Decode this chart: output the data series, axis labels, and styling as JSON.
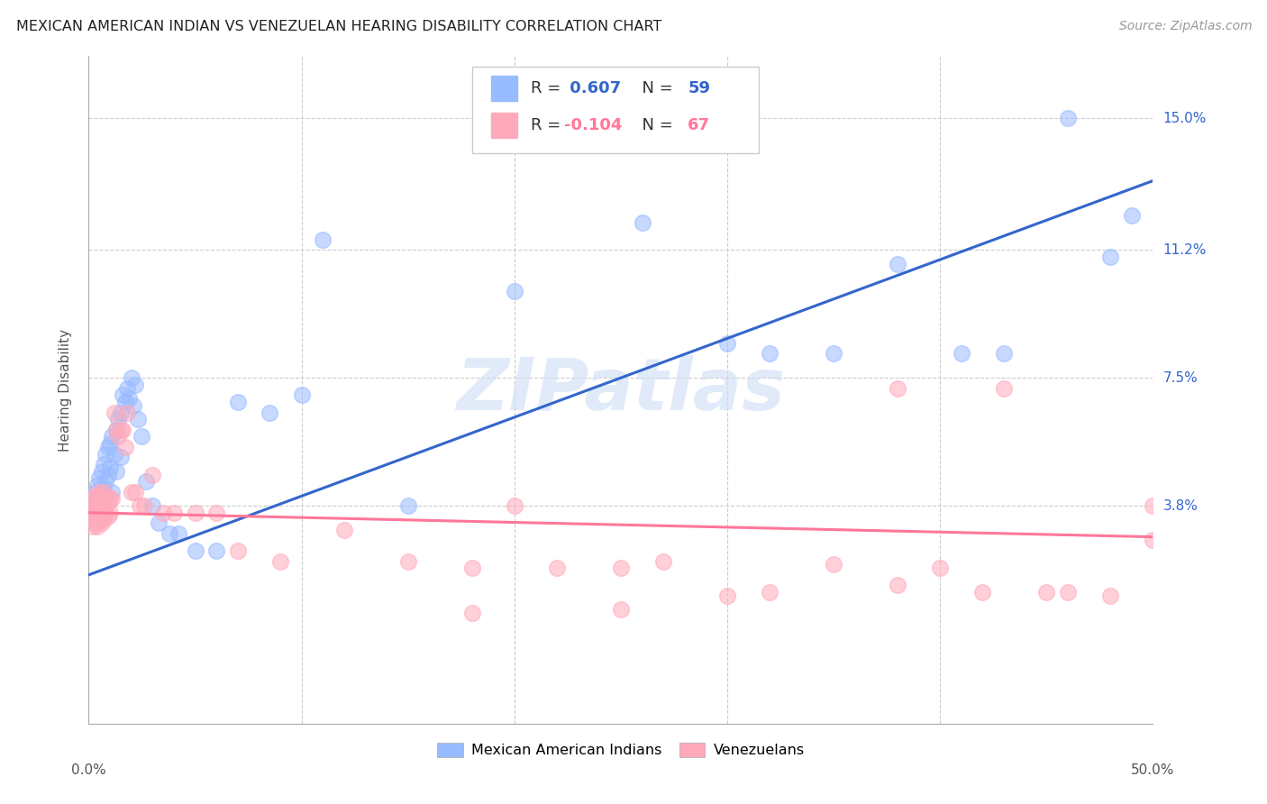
{
  "title": "MEXICAN AMERICAN INDIAN VS VENEZUELAN HEARING DISABILITY CORRELATION CHART",
  "source": "Source: ZipAtlas.com",
  "ylabel": "Hearing Disability",
  "yticks_labels": [
    "15.0%",
    "11.2%",
    "7.5%",
    "3.8%"
  ],
  "ytick_vals": [
    0.15,
    0.112,
    0.075,
    0.038
  ],
  "xmin": 0.0,
  "xmax": 0.5,
  "ymin": -0.025,
  "ymax": 0.168,
  "blue_color": "#99BBFF",
  "pink_color": "#FFAABB",
  "blue_line_color": "#3366CC",
  "pink_line_color": "#FF7799",
  "watermark": "ZIPatlas",
  "legend_label_blue": "Mexican American Indians",
  "legend_label_pink": "Venezuelans",
  "blue_r_text": "R = ",
  "blue_r_val": " 0.607",
  "blue_n_text": "  N = ",
  "blue_n_val": "59",
  "pink_r_text": "R = ",
  "pink_r_val": "-0.104",
  "pink_n_text": "  N = ",
  "pink_n_val": "67",
  "blue_scatter_x": [
    0.001,
    0.002,
    0.002,
    0.003,
    0.003,
    0.004,
    0.004,
    0.005,
    0.005,
    0.006,
    0.006,
    0.007,
    0.007,
    0.008,
    0.008,
    0.009,
    0.009,
    0.01,
    0.01,
    0.011,
    0.011,
    0.012,
    0.013,
    0.013,
    0.014,
    0.015,
    0.015,
    0.016,
    0.017,
    0.018,
    0.019,
    0.02,
    0.021,
    0.022,
    0.023,
    0.025,
    0.027,
    0.03,
    0.033,
    0.038,
    0.042,
    0.05,
    0.06,
    0.07,
    0.085,
    0.1,
    0.11,
    0.15,
    0.2,
    0.26,
    0.3,
    0.32,
    0.35,
    0.38,
    0.41,
    0.43,
    0.46,
    0.48,
    0.49
  ],
  "blue_scatter_y": [
    0.038,
    0.04,
    0.036,
    0.042,
    0.035,
    0.044,
    0.037,
    0.046,
    0.039,
    0.048,
    0.041,
    0.05,
    0.043,
    0.053,
    0.045,
    0.055,
    0.047,
    0.056,
    0.049,
    0.058,
    0.042,
    0.053,
    0.06,
    0.048,
    0.063,
    0.065,
    0.052,
    0.07,
    0.068,
    0.072,
    0.069,
    0.075,
    0.067,
    0.073,
    0.063,
    0.058,
    0.045,
    0.038,
    0.033,
    0.03,
    0.03,
    0.025,
    0.025,
    0.068,
    0.065,
    0.07,
    0.115,
    0.038,
    0.1,
    0.12,
    0.085,
    0.082,
    0.082,
    0.108,
    0.082,
    0.082,
    0.15,
    0.11,
    0.122
  ],
  "pink_scatter_x": [
    0.001,
    0.001,
    0.002,
    0.002,
    0.002,
    0.003,
    0.003,
    0.003,
    0.004,
    0.004,
    0.004,
    0.005,
    0.005,
    0.005,
    0.006,
    0.006,
    0.006,
    0.007,
    0.007,
    0.007,
    0.008,
    0.008,
    0.009,
    0.009,
    0.01,
    0.01,
    0.011,
    0.012,
    0.013,
    0.014,
    0.015,
    0.016,
    0.017,
    0.018,
    0.02,
    0.022,
    0.024,
    0.026,
    0.03,
    0.035,
    0.04,
    0.05,
    0.06,
    0.07,
    0.09,
    0.12,
    0.15,
    0.18,
    0.2,
    0.22,
    0.25,
    0.27,
    0.3,
    0.32,
    0.35,
    0.38,
    0.4,
    0.42,
    0.45,
    0.46,
    0.48,
    0.5,
    0.43,
    0.38,
    0.25,
    0.18,
    0.5
  ],
  "pink_scatter_y": [
    0.038,
    0.034,
    0.04,
    0.036,
    0.032,
    0.041,
    0.037,
    0.033,
    0.04,
    0.036,
    0.032,
    0.042,
    0.038,
    0.034,
    0.041,
    0.037,
    0.033,
    0.042,
    0.038,
    0.034,
    0.04,
    0.036,
    0.039,
    0.035,
    0.04,
    0.036,
    0.04,
    0.065,
    0.06,
    0.058,
    0.06,
    0.06,
    0.055,
    0.065,
    0.042,
    0.042,
    0.038,
    0.038,
    0.047,
    0.036,
    0.036,
    0.036,
    0.036,
    0.025,
    0.022,
    0.031,
    0.022,
    0.02,
    0.038,
    0.02,
    0.02,
    0.022,
    0.012,
    0.013,
    0.021,
    0.015,
    0.02,
    0.013,
    0.013,
    0.013,
    0.012,
    0.038,
    0.072,
    0.072,
    0.008,
    0.007,
    0.028
  ],
  "blue_line_x": [
    0.0,
    0.5
  ],
  "blue_line_y": [
    0.018,
    0.132
  ],
  "pink_line_x": [
    0.0,
    0.5
  ],
  "pink_line_y": [
    0.036,
    0.029
  ]
}
